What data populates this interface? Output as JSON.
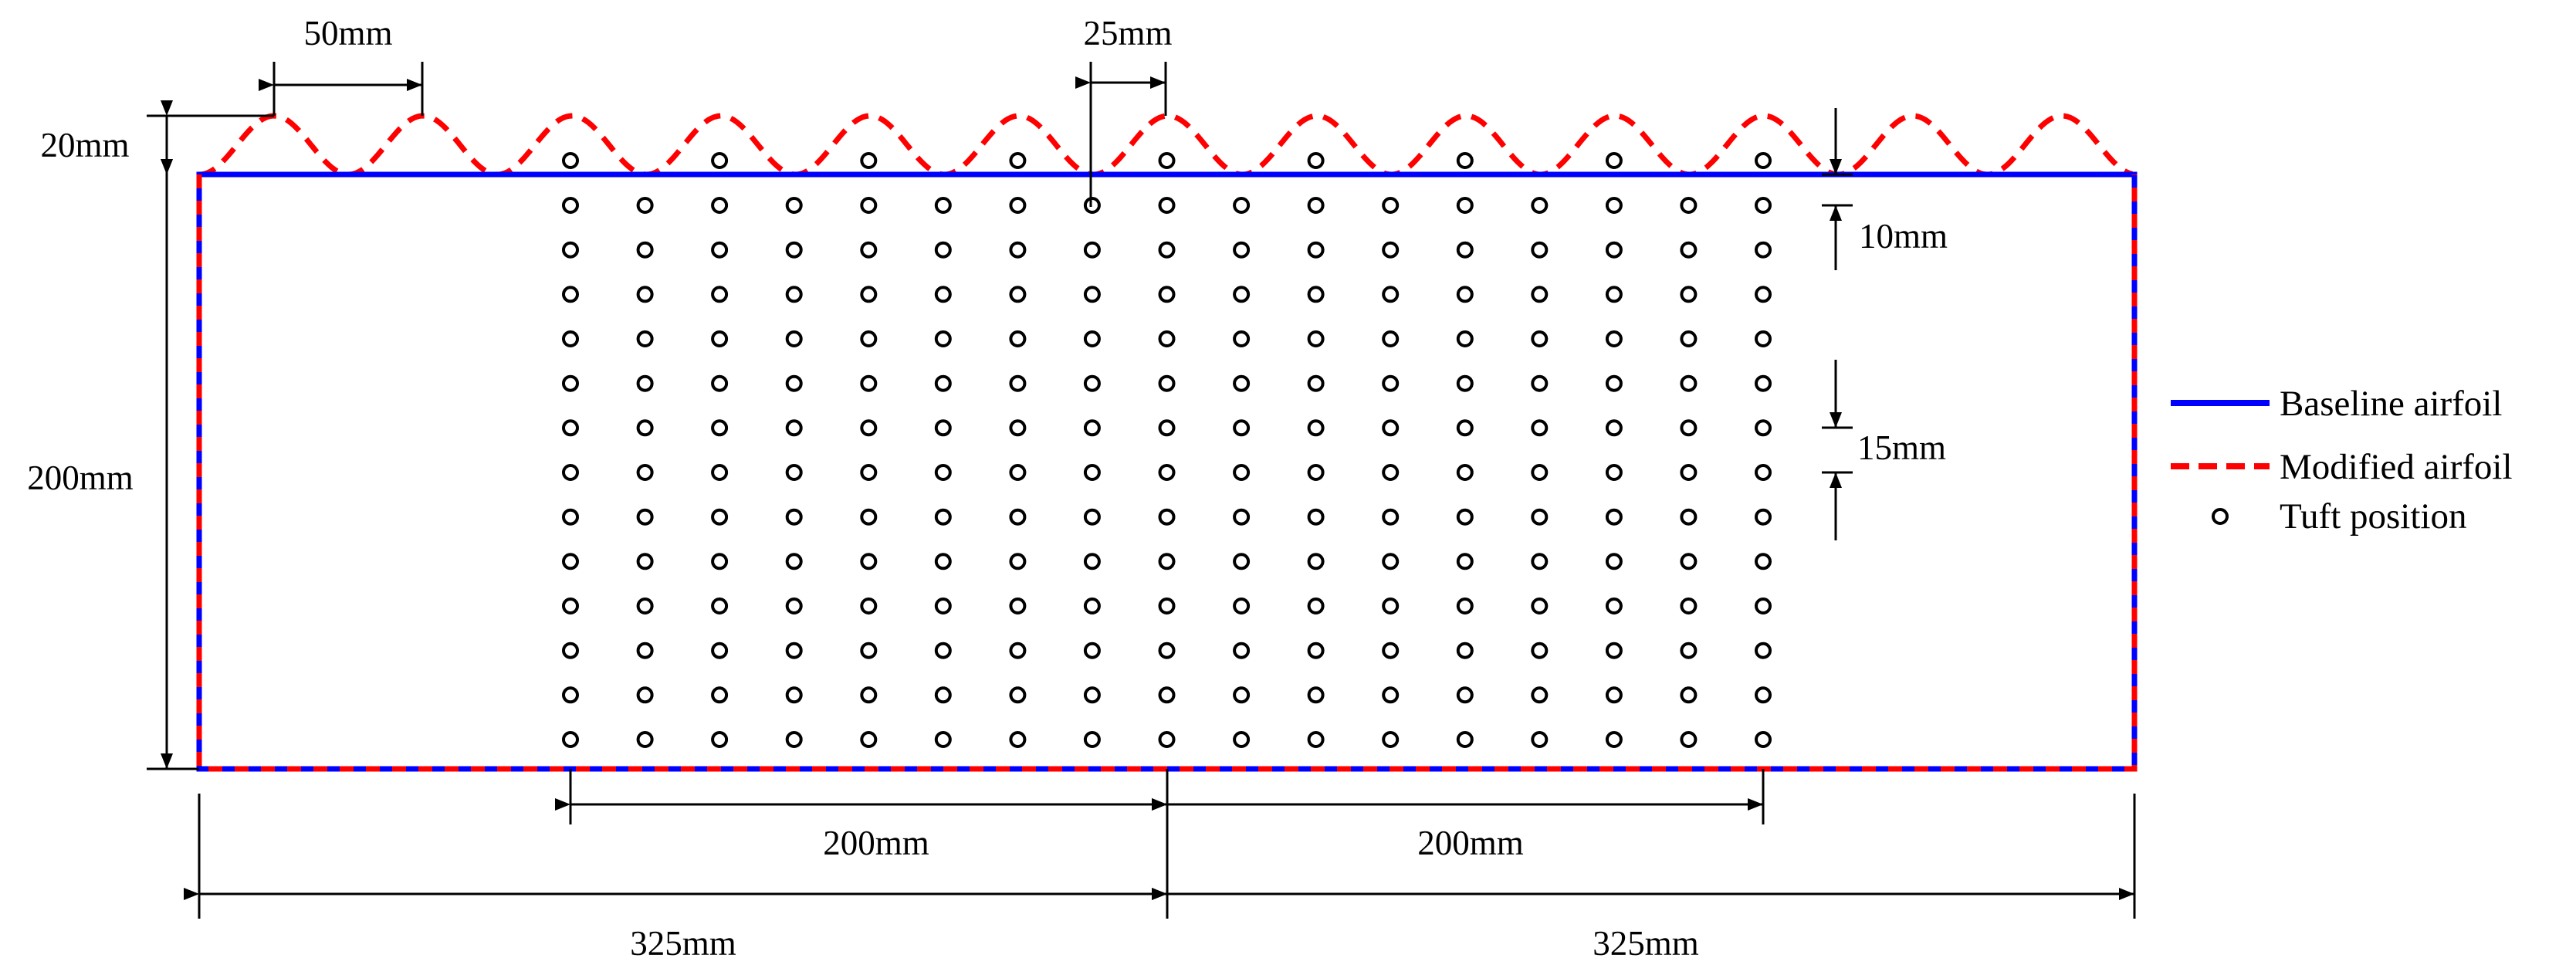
{
  "dimensions": {
    "wave_wavelength": "50mm",
    "wave_amplitude": "20mm",
    "wave_offset": "25mm",
    "first_row_spacing": "10mm",
    "row_spacing": "15mm",
    "chord": "200mm",
    "tuft_span_left": "200mm",
    "tuft_span_right": "200mm",
    "half_span_left": "325mm",
    "half_span_right": "325mm"
  },
  "legend": {
    "baseline": "Baseline airfoil",
    "modified": "Modified airfoil",
    "tuft": "Tuft position"
  },
  "colors": {
    "baseline": "#0000ff",
    "modified": "#ff0000",
    "tuft": "#000000"
  },
  "icons": {
    "baseline": "solid-line-icon",
    "modified": "dashed-line-icon",
    "tuft": "circle-marker-icon"
  },
  "tuft_grid": {
    "columns": 17,
    "rows": 14,
    "column_spacing_mm": 25,
    "row_spacing_mm": 15
  }
}
